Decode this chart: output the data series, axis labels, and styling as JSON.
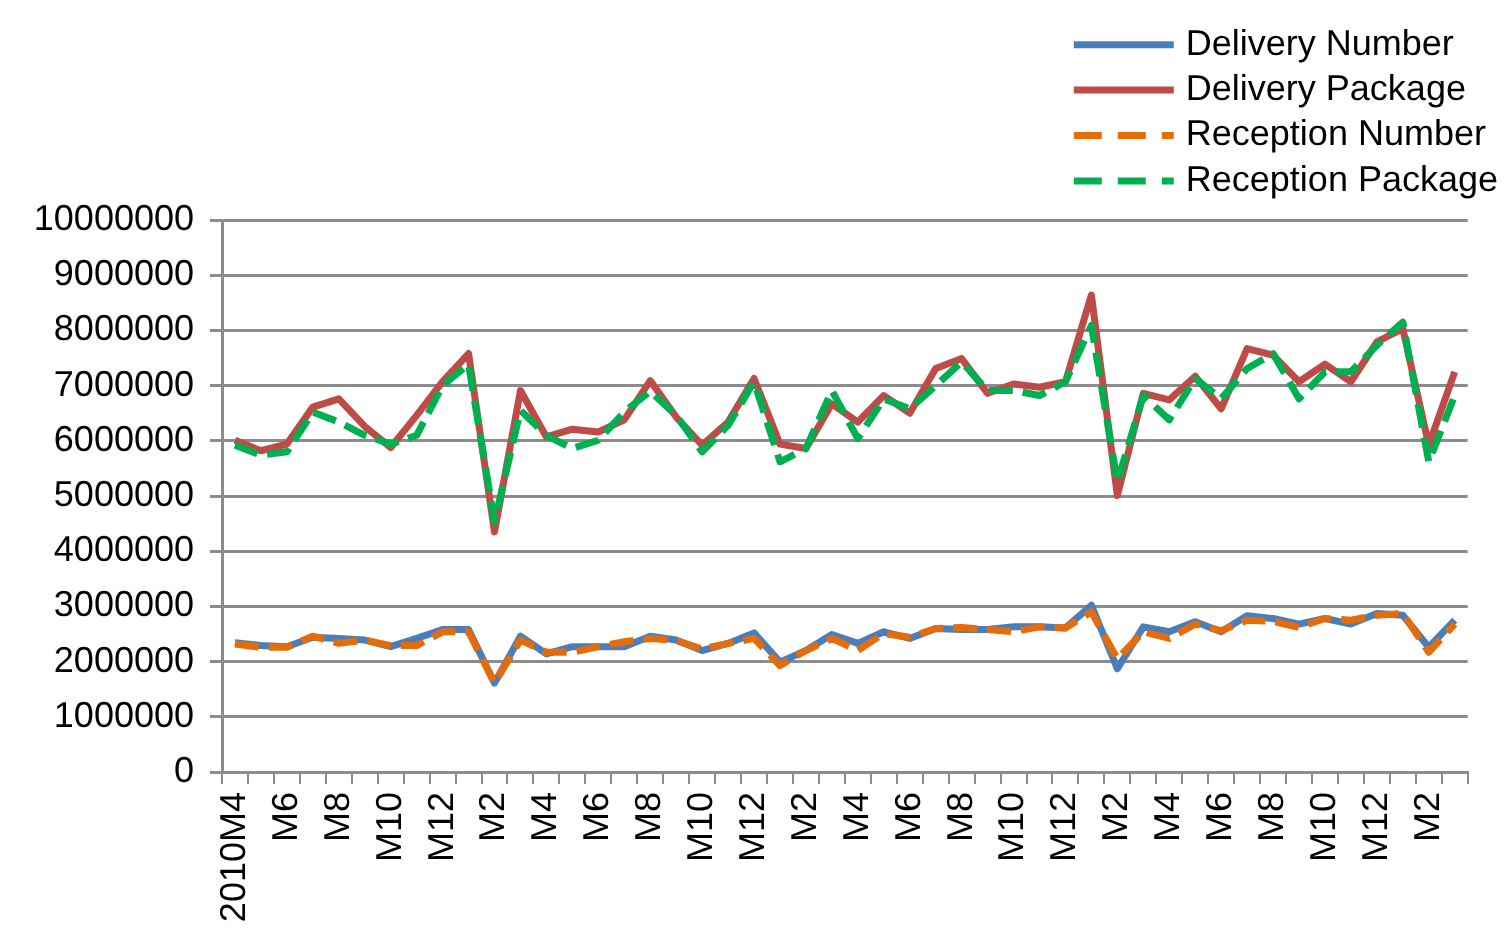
{
  "chart_data": {
    "type": "line",
    "categories": [
      "2010M4",
      null,
      "M6",
      null,
      "M8",
      null,
      "M10",
      null,
      "M12",
      null,
      "M2",
      null,
      "M4",
      null,
      "M6",
      null,
      "M8",
      null,
      "M10",
      null,
      "M12",
      null,
      "M2",
      null,
      "M4",
      null,
      "M6",
      null,
      "M8",
      null,
      "M10",
      null,
      "M12",
      null,
      "M2",
      null,
      "M4",
      null,
      "M6",
      null,
      "M8",
      null,
      "M10",
      null,
      "M12",
      null,
      "M2",
      null
    ],
    "series": [
      {
        "name": "Delivery Number",
        "color": "#4a7ebb",
        "line_style": "solid",
        "values": [
          2340000,
          2290000,
          2270000,
          2440000,
          2420000,
          2390000,
          2270000,
          2420000,
          2580000,
          2580000,
          1610000,
          2460000,
          2140000,
          2270000,
          2270000,
          2270000,
          2460000,
          2390000,
          2200000,
          2330000,
          2520000,
          1990000,
          2200000,
          2490000,
          2330000,
          2540000,
          2420000,
          2600000,
          2580000,
          2580000,
          2630000,
          2630000,
          2610000,
          3020000,
          1870000,
          2630000,
          2540000,
          2720000,
          2540000,
          2830000,
          2780000,
          2680000,
          2780000,
          2680000,
          2870000,
          2840000,
          2260000,
          2750000
        ]
      },
      {
        "name": "Delivery Package",
        "color": "#be4b48",
        "line_style": "solid",
        "values": [
          6010000,
          5820000,
          5940000,
          6610000,
          6760000,
          6260000,
          5880000,
          6460000,
          7070000,
          7580000,
          4350000,
          6910000,
          6070000,
          6210000,
          6160000,
          6380000,
          7090000,
          6430000,
          5920000,
          6340000,
          7130000,
          5940000,
          5860000,
          6670000,
          6340000,
          6820000,
          6500000,
          7310000,
          7490000,
          6860000,
          7030000,
          6970000,
          7070000,
          8640000,
          5010000,
          6860000,
          6740000,
          7170000,
          6580000,
          7670000,
          7550000,
          7070000,
          7390000,
          7070000,
          7790000,
          8030000,
          5920000,
          7250000
        ]
      },
      {
        "name": "Reception Number",
        "color": "#e46c0a",
        "line_style": "dashed",
        "values": [
          2320000,
          2260000,
          2260000,
          2460000,
          2330000,
          2390000,
          2290000,
          2290000,
          2540000,
          2540000,
          1610000,
          2390000,
          2170000,
          2170000,
          2270000,
          2360000,
          2420000,
          2380000,
          2230000,
          2330000,
          2420000,
          1930000,
          2200000,
          2420000,
          2200000,
          2510000,
          2440000,
          2600000,
          2620000,
          2580000,
          2540000,
          2630000,
          2610000,
          2900000,
          2050000,
          2540000,
          2420000,
          2680000,
          2560000,
          2750000,
          2730000,
          2620000,
          2780000,
          2750000,
          2840000,
          2870000,
          2170000,
          2680000
        ]
      },
      {
        "name": "Reception Package",
        "color": "#00b050",
        "line_style": "dashed",
        "values": [
          5920000,
          5740000,
          5800000,
          6520000,
          6340000,
          6100000,
          5940000,
          6100000,
          7000000,
          7390000,
          4530000,
          6550000,
          6100000,
          5860000,
          6010000,
          6520000,
          6900000,
          6460000,
          5800000,
          6280000,
          7070000,
          5620000,
          5860000,
          6910000,
          6040000,
          6760000,
          6580000,
          7000000,
          7430000,
          6910000,
          6910000,
          6820000,
          7070000,
          8090000,
          5250000,
          6820000,
          6380000,
          7130000,
          6760000,
          7310000,
          7580000,
          6760000,
          7250000,
          7250000,
          7730000,
          8150000,
          5620000,
          6820000
        ]
      }
    ],
    "ylim": [
      0,
      10000000
    ],
    "yticks": [
      0,
      1000000,
      2000000,
      3000000,
      4000000,
      5000000,
      6000000,
      7000000,
      8000000,
      9000000,
      10000000
    ],
    "grid": "y",
    "legend": "top right",
    "marker": "none"
  }
}
